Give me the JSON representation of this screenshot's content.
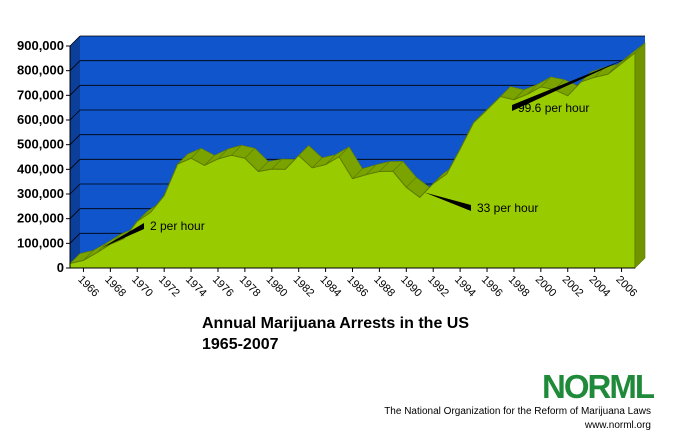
{
  "chart_data": {
    "type": "area",
    "title_line1": "Annual Marijuana Arrests in the US",
    "title_line2": "1965-2007",
    "x": [
      1965,
      1966,
      1967,
      1968,
      1969,
      1970,
      1971,
      1972,
      1973,
      1974,
      1975,
      1976,
      1977,
      1978,
      1979,
      1980,
      1981,
      1982,
      1983,
      1984,
      1985,
      1986,
      1987,
      1988,
      1989,
      1990,
      1991,
      1992,
      1993,
      1994,
      1995,
      1996,
      1997,
      1998,
      1999,
      2000,
      2001,
      2002,
      2003,
      2004,
      2005,
      2006,
      2007
    ],
    "values": [
      18000,
      31000,
      62000,
      96000,
      119000,
      189000,
      226000,
      293000,
      421000,
      445000,
      416000,
      442000,
      457000,
      445000,
      391000,
      401000,
      400000,
      456000,
      406000,
      419000,
      451000,
      362000,
      378000,
      391000,
      392000,
      327000,
      286000,
      342000,
      381000,
      482000,
      589000,
      641000,
      695000,
      682000,
      704000,
      734000,
      723000,
      698000,
      755000,
      773000,
      786000,
      829000,
      872000
    ],
    "y_ticks": [
      "900,000",
      "800,000",
      "700,000",
      "600,000",
      "500,000",
      "400,000",
      "300,000",
      "200,000",
      "100,000",
      "0"
    ],
    "x_ticks": [
      "1966",
      "1968",
      "1970",
      "1972",
      "1974",
      "1976",
      "1978",
      "1980",
      "1982",
      "1984",
      "1986",
      "1988",
      "1990",
      "1992",
      "1994",
      "1996",
      "1998",
      "2000",
      "2002",
      "2004",
      "2006"
    ],
    "ylim": [
      0,
      900000
    ],
    "grid": true,
    "colors": {
      "plot_background": "#1155cc",
      "area_fill": "#99cc00",
      "area_edge": "#5c7a00",
      "grid": "#000000"
    },
    "annotations": [
      {
        "text": "2 per hour",
        "year": 1967
      },
      {
        "text": "33 per hour",
        "year": 1991
      },
      {
        "text": "99.6 per hour",
        "year": 2006
      }
    ]
  },
  "footer": {
    "logo_text": "NORML",
    "org_name": "The National Organization for the Reform of Marijuana Laws",
    "url": "www.norml.org"
  }
}
